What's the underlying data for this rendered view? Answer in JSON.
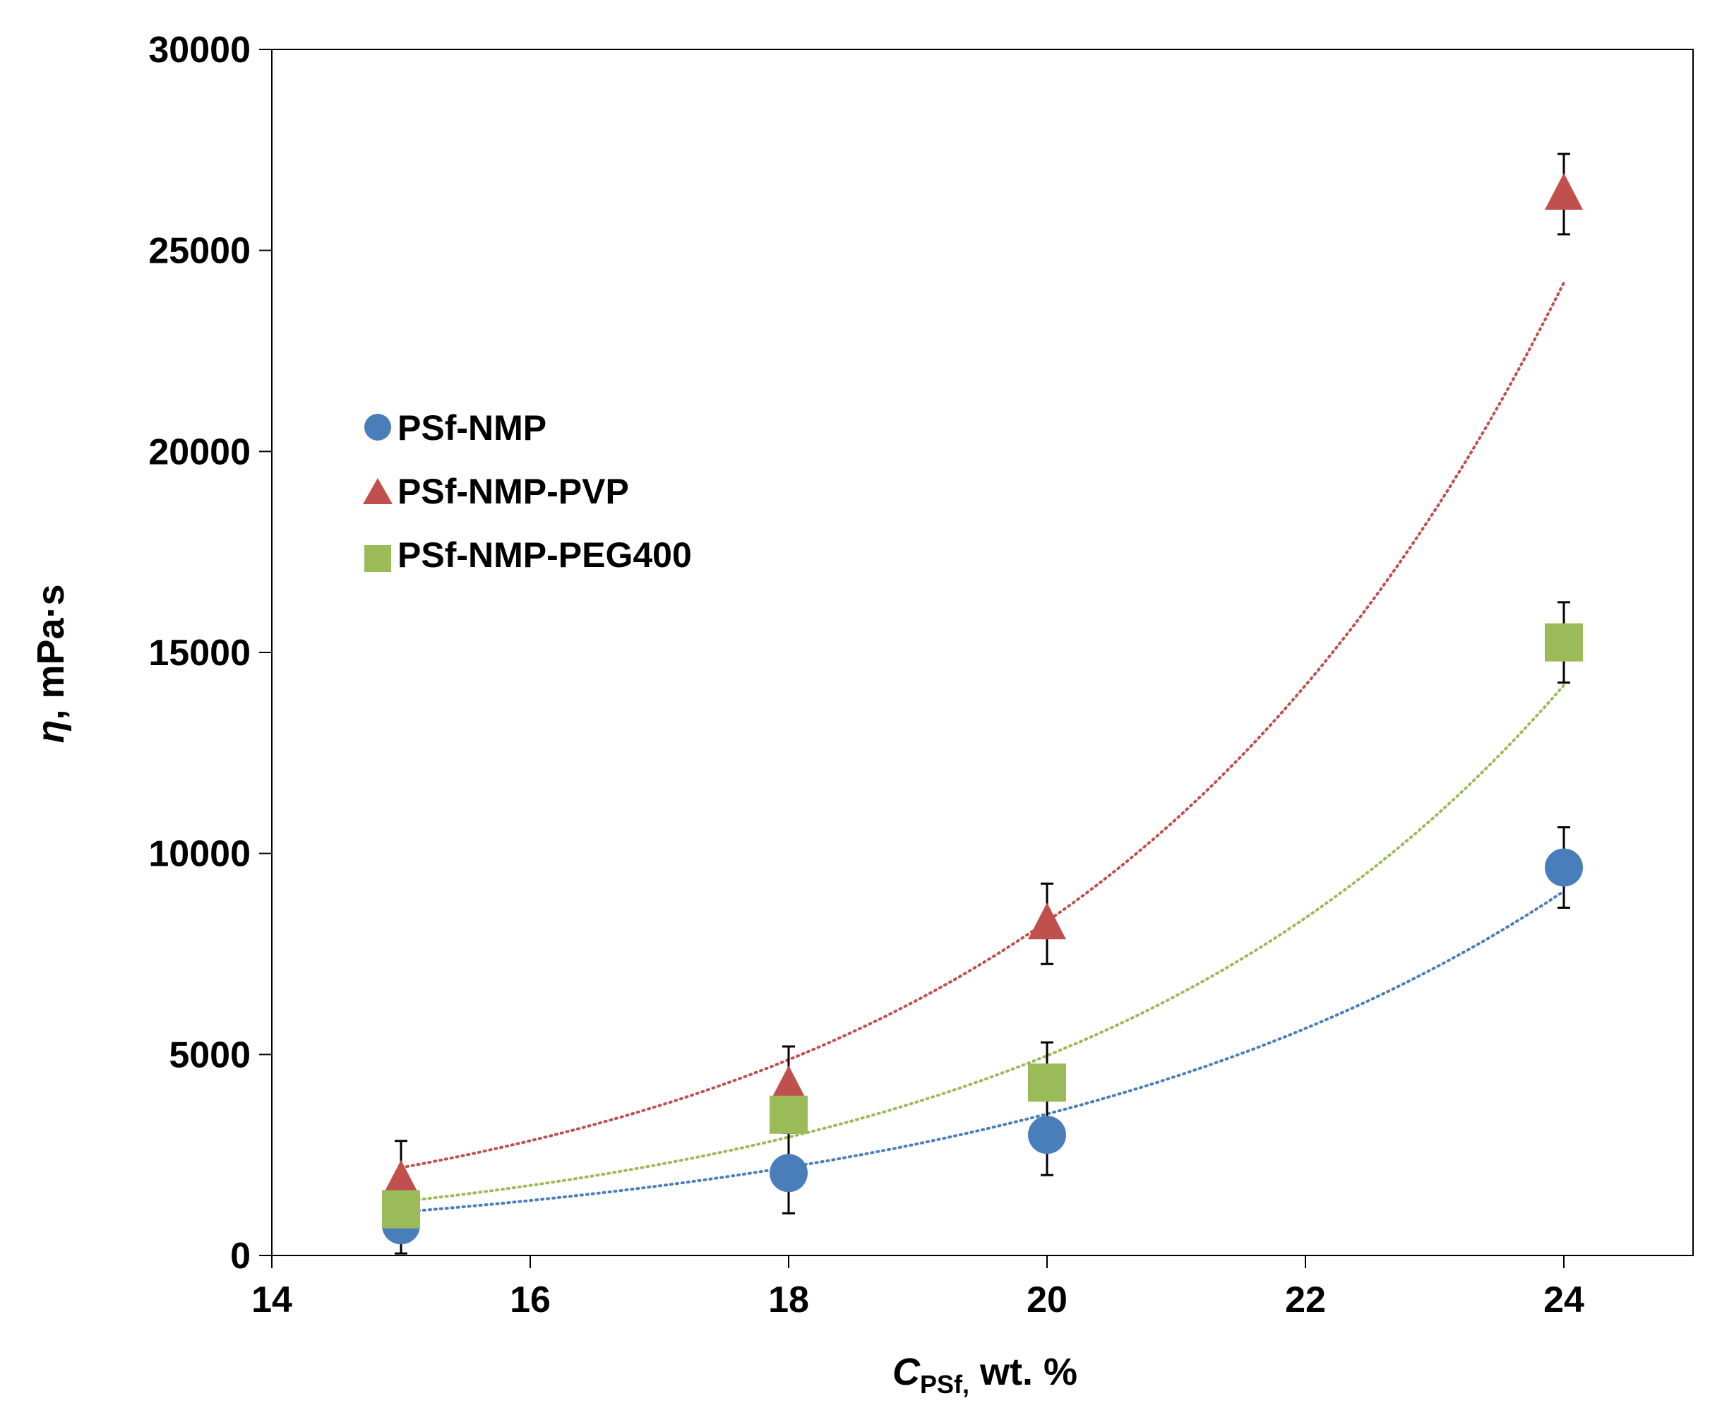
{
  "chart_data": {
    "type": "scatter",
    "x_axis": {
      "label_symbol": "C",
      "label_subscript": "PSf,",
      "label_rest": " wt. %",
      "min": 14,
      "max": 25,
      "ticks": [
        14,
        16,
        18,
        20,
        22,
        24
      ]
    },
    "y_axis": {
      "label_symbol": "η",
      "label_rest": ", mPa·s",
      "min": 0,
      "max": 30000,
      "ticks": [
        0,
        5000,
        10000,
        15000,
        20000,
        25000,
        30000
      ]
    },
    "trendline": {
      "type": "exponential",
      "style": "dotted"
    },
    "series": [
      {
        "name": "PSf-NMP",
        "marker": "circle",
        "color": "#4a7ebb",
        "x": [
          15,
          18,
          20,
          24
        ],
        "y": [
          750,
          2050,
          3000,
          9650
        ],
        "error": [
          700,
          1000,
          1000,
          1000
        ],
        "fit": {
          "a": 31.2,
          "b": 0.2363
        }
      },
      {
        "name": "PSf-NMP-PVP",
        "marker": "triangle",
        "color": "#c0504d",
        "x": [
          15,
          18,
          20,
          24
        ],
        "y": [
          1850,
          4200,
          8250,
          26400
        ],
        "error": [
          1000,
          1000,
          1000,
          1000
        ],
        "fit": {
          "a": 39.7,
          "b": 0.2672
        }
      },
      {
        "name": "PSf-NMP-PEG400",
        "marker": "square",
        "color": "#9bbb59",
        "x": [
          15,
          18,
          20,
          24
        ],
        "y": [
          1150,
          3500,
          4300,
          15250
        ],
        "error": [
          0,
          0,
          1000,
          1000
        ],
        "fit": {
          "a": 26.3,
          "b": 0.2621
        }
      }
    ]
  }
}
